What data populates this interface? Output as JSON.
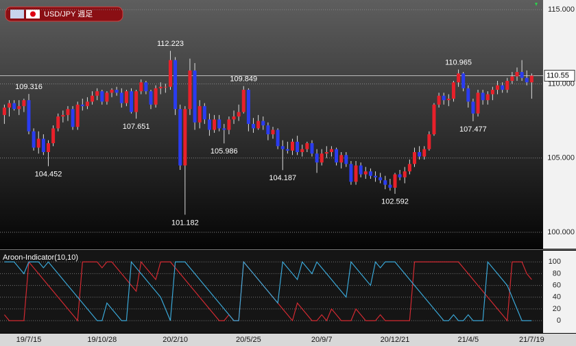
{
  "chart_data": [
    {
      "type": "candlestick",
      "title": "USD/JPY 週足",
      "up_color": "#e8202a",
      "down_color": "#2a3cf0",
      "grid": true,
      "ylim": [
        98.89,
        115.65
      ],
      "yticks": [
        {
          "value": 100,
          "label": "100.000"
        },
        {
          "value": 105,
          "label": "105.000"
        },
        {
          "value": 110,
          "label": "110.000"
        },
        {
          "value": 115,
          "label": "115.000"
        }
      ],
      "annotations": [
        {
          "candle": 5,
          "at": "high"
        },
        {
          "candle": 34,
          "at": "high"
        },
        {
          "candle": 49,
          "at": "high"
        },
        {
          "candle": 93,
          "at": "high"
        },
        {
          "candle": 9,
          "at": "low"
        },
        {
          "candle": 27,
          "at": "low"
        },
        {
          "candle": 37,
          "at": "low"
        },
        {
          "candle": 45,
          "at": "low"
        },
        {
          "candle": 57,
          "at": "low"
        },
        {
          "candle": 80,
          "at": "low"
        },
        {
          "candle": 96,
          "at": "low"
        }
      ],
      "ohlc": [
        [
          107.9,
          108.6,
          107.3,
          108.4
        ],
        [
          108.4,
          108.9,
          107.8,
          108.7
        ],
        [
          108.7,
          108.9,
          108.2,
          108.3
        ],
        [
          108.3,
          108.9,
          107.9,
          108.5
        ],
        [
          108.5,
          109.0,
          108.1,
          108.9
        ],
        [
          108.9,
          109.316,
          106.6,
          106.8
        ],
        [
          106.8,
          107.0,
          105.5,
          105.7
        ],
        [
          105.7,
          106.8,
          105.3,
          106.3
        ],
        [
          106.3,
          106.6,
          105.2,
          105.4
        ],
        [
          105.4,
          106.2,
          104.452,
          106.0
        ],
        [
          106.0,
          107.2,
          105.8,
          107.0
        ],
        [
          107.0,
          108.0,
          106.8,
          107.8
        ],
        [
          107.8,
          108.2,
          107.4,
          107.9
        ],
        [
          107.9,
          108.5,
          107.5,
          108.3
        ],
        [
          108.3,
          108.5,
          106.9,
          107.1
        ],
        [
          107.1,
          108.8,
          106.9,
          108.6
        ],
        [
          108.6,
          109.0,
          108.2,
          108.5
        ],
        [
          108.5,
          109.1,
          108.3,
          108.8
        ],
        [
          108.8,
          109.5,
          108.6,
          109.2
        ],
        [
          109.2,
          109.7,
          108.9,
          109.5
        ],
        [
          109.5,
          109.6,
          108.6,
          108.8
        ],
        [
          108.8,
          109.5,
          108.6,
          109.4
        ],
        [
          109.4,
          109.7,
          109.1,
          109.6
        ],
        [
          109.6,
          109.8,
          109.2,
          109.4
        ],
        [
          109.4,
          109.7,
          108.4,
          108.7
        ],
        [
          108.7,
          109.6,
          108.5,
          109.5
        ],
        [
          109.5,
          109.7,
          108.0,
          108.1
        ],
        [
          108.1,
          109.6,
          107.651,
          109.5
        ],
        [
          109.5,
          110.3,
          109.3,
          110.1
        ],
        [
          110.1,
          110.2,
          109.3,
          109.5
        ],
        [
          109.5,
          109.6,
          108.3,
          108.6
        ],
        [
          108.6,
          109.9,
          108.4,
          109.7
        ],
        [
          109.7,
          110.1,
          109.3,
          109.8
        ],
        [
          109.8,
          110.0,
          109.4,
          109.8
        ],
        [
          109.8,
          112.223,
          109.6,
          111.6
        ],
        [
          111.6,
          111.8,
          107.9,
          108.3
        ],
        [
          108.3,
          108.6,
          104.2,
          104.5
        ],
        [
          104.5,
          108.5,
          101.182,
          108.3
        ],
        [
          108.3,
          111.7,
          107.9,
          110.9
        ],
        [
          110.9,
          111.4,
          106.9,
          107.4
        ],
        [
          107.4,
          108.9,
          107.0,
          108.5
        ],
        [
          108.5,
          108.7,
          107.3,
          107.6
        ],
        [
          107.6,
          108.0,
          106.5,
          106.9
        ],
        [
          106.9,
          107.9,
          106.7,
          107.6
        ],
        [
          107.6,
          107.9,
          106.8,
          107.0
        ],
        [
          107.0,
          107.3,
          105.986,
          106.9
        ],
        [
          106.9,
          107.8,
          106.6,
          107.6
        ],
        [
          107.6,
          108.2,
          107.3,
          107.8
        ],
        [
          107.8,
          108.6,
          107.5,
          108.1
        ],
        [
          108.1,
          109.849,
          108.0,
          109.6
        ],
        [
          109.6,
          109.7,
          106.8,
          107.3
        ],
        [
          107.3,
          107.7,
          106.7,
          107.0
        ],
        [
          107.0,
          107.9,
          106.9,
          107.5
        ],
        [
          107.5,
          107.8,
          106.9,
          107.2
        ],
        [
          107.2,
          107.4,
          106.2,
          106.6
        ],
        [
          106.6,
          107.1,
          106.3,
          106.9
        ],
        [
          106.9,
          107.0,
          105.6,
          105.8
        ],
        [
          105.8,
          106.2,
          104.187,
          105.6
        ],
        [
          105.6,
          106.1,
          105.3,
          105.5
        ],
        [
          105.5,
          106.3,
          105.2,
          106.1
        ],
        [
          106.1,
          106.5,
          105.2,
          105.4
        ],
        [
          105.4,
          105.9,
          105.1,
          105.6
        ],
        [
          105.6,
          106.1,
          105.4,
          106.0
        ],
        [
          106.0,
          106.2,
          105.1,
          105.3
        ],
        [
          105.3,
          105.6,
          104.0,
          104.7
        ],
        [
          104.7,
          105.6,
          104.5,
          105.3
        ],
        [
          105.3,
          105.8,
          105.0,
          105.4
        ],
        [
          105.4,
          105.8,
          105.1,
          105.6
        ],
        [
          105.6,
          105.7,
          104.5,
          104.7
        ],
        [
          104.7,
          105.4,
          104.3,
          105.2
        ],
        [
          105.2,
          105.4,
          104.4,
          104.6
        ],
        [
          104.6,
          104.8,
          103.2,
          103.4
        ],
        [
          103.4,
          104.8,
          103.2,
          104.5
        ],
        [
          104.5,
          104.7,
          103.7,
          103.9
        ],
        [
          103.9,
          104.4,
          103.6,
          104.1
        ],
        [
          104.1,
          104.3,
          103.6,
          103.8
        ],
        [
          103.8,
          104.1,
          103.4,
          103.7
        ],
        [
          103.7,
          104.0,
          103.3,
          103.5
        ],
        [
          103.5,
          103.8,
          102.9,
          103.2
        ],
        [
          103.2,
          103.6,
          102.8,
          103.0
        ],
        [
          103.0,
          104.0,
          102.592,
          103.9
        ],
        [
          103.9,
          104.2,
          103.5,
          103.7
        ],
        [
          103.7,
          104.4,
          103.3,
          104.1
        ],
        [
          104.1,
          104.9,
          103.9,
          104.6
        ],
        [
          104.6,
          105.7,
          104.4,
          105.4
        ],
        [
          105.4,
          105.8,
          104.9,
          105.1
        ],
        [
          105.1,
          105.8,
          104.9,
          105.6
        ],
        [
          105.6,
          106.8,
          105.5,
          106.6
        ],
        [
          106.6,
          108.7,
          106.5,
          108.6
        ],
        [
          108.6,
          109.4,
          108.4,
          109.2
        ],
        [
          109.2,
          109.4,
          108.6,
          108.9
        ],
        [
          108.9,
          109.3,
          108.5,
          109.0
        ],
        [
          109.0,
          110.2,
          108.8,
          110.1
        ],
        [
          110.1,
          110.965,
          109.8,
          110.7
        ],
        [
          110.7,
          110.8,
          109.5,
          109.7
        ],
        [
          109.7,
          109.9,
          108.4,
          108.8
        ],
        [
          108.8,
          109.0,
          107.477,
          108.0
        ],
        [
          108.0,
          109.6,
          107.8,
          109.4
        ],
        [
          109.4,
          109.6,
          108.6,
          108.9
        ],
        [
          108.9,
          109.5,
          108.6,
          109.3
        ],
        [
          109.3,
          109.8,
          108.9,
          109.6
        ],
        [
          109.6,
          110.2,
          109.3,
          109.9
        ],
        [
          109.9,
          110.1,
          109.4,
          109.6
        ],
        [
          109.6,
          110.4,
          109.4,
          110.2
        ],
        [
          110.2,
          110.8,
          110.0,
          110.5
        ],
        [
          110.5,
          111.1,
          110.2,
          110.8
        ],
        [
          110.8,
          111.6,
          110.2,
          110.4
        ],
        [
          110.4,
          110.9,
          109.9,
          110.1
        ],
        [
          110.1,
          110.7,
          109.0,
          110.55
        ]
      ]
    },
    {
      "type": "line",
      "title": "Aroon-Indicator(10,10)",
      "grid": true,
      "ylim": [
        -21,
        119
      ],
      "yticks": [
        0,
        20,
        40,
        60,
        80,
        100
      ],
      "categories": [
        null,
        null,
        null,
        null,
        null,
        "19/7/15",
        null,
        null,
        null,
        null,
        null,
        null,
        null,
        null,
        null,
        null,
        null,
        null,
        null,
        null,
        "19/10/28",
        null,
        null,
        null,
        null,
        null,
        null,
        null,
        null,
        null,
        null,
        null,
        null,
        null,
        null,
        "20/2/10",
        null,
        null,
        null,
        null,
        null,
        null,
        null,
        null,
        null,
        null,
        null,
        null,
        null,
        null,
        "20/5/25",
        null,
        null,
        null,
        null,
        null,
        null,
        null,
        null,
        null,
        null,
        null,
        null,
        null,
        null,
        "20/9/7",
        null,
        null,
        null,
        null,
        null,
        null,
        null,
        null,
        null,
        null,
        null,
        null,
        null,
        null,
        "20/12/21",
        null,
        null,
        null,
        null,
        null,
        null,
        null,
        null,
        null,
        null,
        null,
        null,
        null,
        null,
        "21/4/5",
        null,
        null,
        null,
        null,
        null,
        null,
        null,
        null,
        null,
        null,
        null,
        null,
        "21/7/19"
      ],
      "series": [
        {
          "color": "#d42a32",
          "values": [
            10,
            0,
            0,
            0,
            0,
            100,
            90,
            80,
            70,
            60,
            50,
            40,
            30,
            20,
            10,
            0,
            100,
            100,
            100,
            100,
            90,
            100,
            100,
            90,
            80,
            70,
            60,
            50,
            100,
            90,
            80,
            70,
            100,
            100,
            100,
            90,
            80,
            70,
            60,
            50,
            40,
            30,
            20,
            10,
            0,
            0,
            10,
            0,
            0,
            100,
            90,
            80,
            70,
            60,
            50,
            40,
            30,
            20,
            10,
            0,
            30,
            20,
            10,
            0,
            0,
            10,
            0,
            20,
            10,
            0,
            0,
            0,
            20,
            10,
            0,
            0,
            0,
            10,
            0,
            0,
            0,
            0,
            0,
            0,
            100,
            100,
            100,
            100,
            100,
            100,
            100,
            100,
            100,
            100,
            90,
            80,
            70,
            60,
            50,
            40,
            30,
            20,
            10,
            0,
            100,
            100,
            100,
            80,
            70
          ]
        },
        {
          "color": "#3aa8d8",
          "values": [
            100,
            100,
            100,
            90,
            80,
            100,
            100,
            100,
            90,
            100,
            90,
            80,
            70,
            60,
            50,
            40,
            30,
            20,
            10,
            0,
            0,
            30,
            20,
            10,
            0,
            0,
            100,
            90,
            80,
            70,
            60,
            50,
            40,
            20,
            0,
            100,
            100,
            100,
            90,
            80,
            70,
            60,
            50,
            40,
            30,
            20,
            10,
            0,
            0,
            100,
            90,
            80,
            70,
            60,
            50,
            40,
            30,
            100,
            90,
            80,
            70,
            100,
            90,
            80,
            100,
            90,
            80,
            70,
            60,
            50,
            40,
            100,
            90,
            80,
            70,
            60,
            100,
            90,
            100,
            100,
            100,
            90,
            80,
            70,
            60,
            50,
            40,
            30,
            20,
            10,
            0,
            0,
            10,
            0,
            0,
            10,
            0,
            0,
            0,
            100,
            90,
            80,
            70,
            60,
            40,
            20,
            0,
            0,
            0
          ]
        }
      ]
    }
  ]
}
